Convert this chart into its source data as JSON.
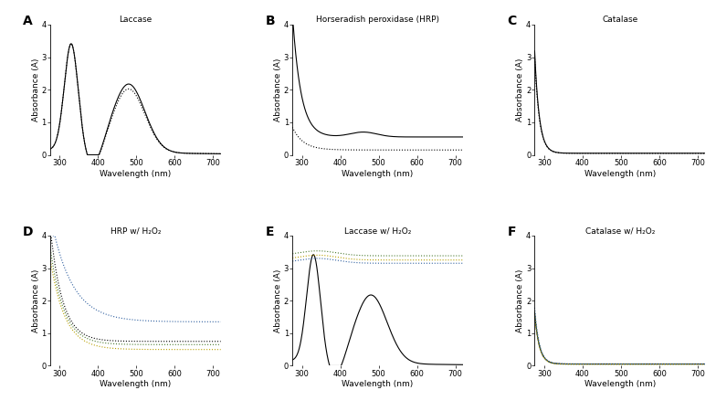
{
  "panel_titles": [
    "Laccase",
    "Horseradish peroxidase (HRP)",
    "Catalase",
    "HRP w/ H₂O₂",
    "Laccase w/ H₂O₂",
    "Catalase w/ H₂O₂"
  ],
  "panel_labels": [
    "A",
    "B",
    "C",
    "D",
    "E",
    "F"
  ],
  "xlabel": "Wavelength (nm)",
  "ylabel": "Absorbance (A)",
  "xlim": [
    275,
    720
  ],
  "ylim": [
    0,
    4
  ],
  "xticks": [
    300,
    400,
    500,
    600,
    700
  ],
  "yticks": [
    0,
    1,
    2,
    3,
    4
  ],
  "color_black": "#000000",
  "color_yellow": "#b8a000",
  "color_green": "#4a7a30",
  "color_blue": "#3060a0",
  "bg_color": "#ffffff",
  "title_fontsize": 6.5,
  "label_fontsize": 6.5,
  "tick_fontsize": 6,
  "panel_label_fontsize": 10,
  "linewidth": 0.8
}
